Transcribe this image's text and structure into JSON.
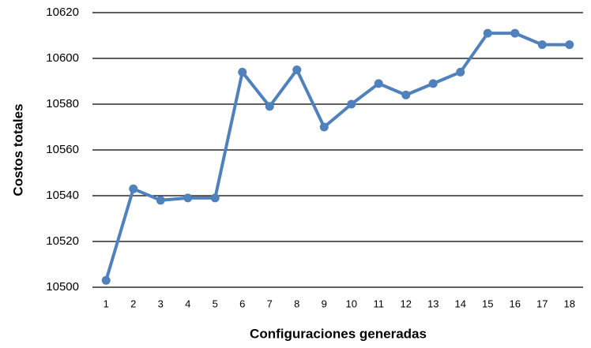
{
  "chart_data": {
    "type": "line",
    "xlabel": "Configuraciones generadas",
    "ylabel": "Costos totales",
    "categories": [
      "1",
      "2",
      "3",
      "4",
      "5",
      "6",
      "7",
      "8",
      "9",
      "10",
      "11",
      "12",
      "13",
      "14",
      "15",
      "16",
      "17",
      "18"
    ],
    "series": [
      {
        "color": "#4f81bd",
        "values": [
          10503,
          10543,
          10538,
          10539,
          10539,
          10594,
          10579,
          10595,
          10570,
          10580,
          10589,
          10584,
          10589,
          10594,
          10611,
          10611,
          10606,
          10606
        ]
      }
    ],
    "ylim": [
      10500,
      10620
    ],
    "yticks": [
      10500,
      10520,
      10540,
      10560,
      10580,
      10600,
      10620
    ],
    "grid": true
  }
}
